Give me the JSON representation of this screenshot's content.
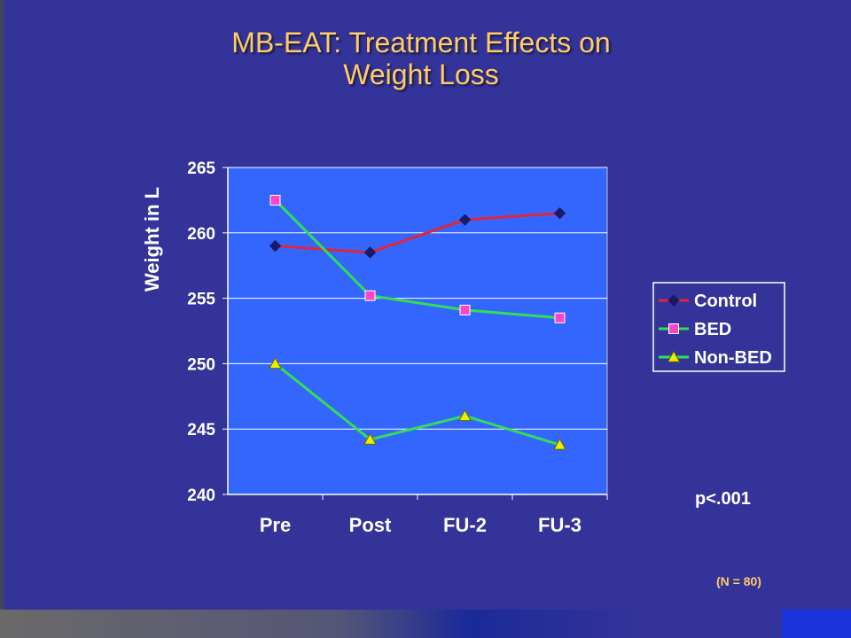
{
  "slide": {
    "title_line1": "MB-EAT: Treatment Effects on",
    "title_line2": "Weight Loss",
    "p_value": "p<.001",
    "n_note": "(N = 80)"
  },
  "colors": {
    "background": "#333399",
    "plot_area": "#3366ff",
    "title": "#ffcc66",
    "control": "#e0253a",
    "bed_line": "#33dd55",
    "bed_marker": "#ff44cc",
    "nonbed_line": "#33dd55",
    "nonbed_marker": "#eeee00",
    "control_marker": "#1a1a66"
  },
  "chart_data": {
    "type": "line",
    "title": "",
    "xlabel": "",
    "ylabel": "Weight in L",
    "categories": [
      "Pre",
      "Post",
      "FU-2",
      "FU-3"
    ],
    "ylim": [
      240,
      265
    ],
    "yticks": [
      "240",
      "245",
      "250",
      "255",
      "260",
      "265"
    ],
    "grid": true,
    "legend_position": "right",
    "series": [
      {
        "name": "Control",
        "values": [
          259.0,
          258.5,
          261.0,
          261.5
        ],
        "marker": "diamond"
      },
      {
        "name": "BED",
        "values": [
          262.5,
          255.2,
          254.1,
          253.5
        ],
        "marker": "square"
      },
      {
        "name": "Non-BED",
        "values": [
          250.0,
          244.2,
          246.0,
          243.8
        ],
        "marker": "triangle"
      }
    ]
  }
}
